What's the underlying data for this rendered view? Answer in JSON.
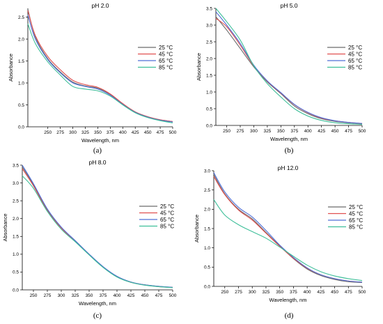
{
  "chart_data": [
    {
      "type": "line",
      "panel_label": "(a)",
      "title": "pH 2.0",
      "xlabel": "Wavelength, nm",
      "ylabel": "Absorbance",
      "xlim": [
        210,
        500
      ],
      "ylim": [
        0,
        2.7
      ],
      "xticks": [
        250,
        275,
        300,
        325,
        350,
        375,
        400,
        425,
        450,
        475,
        500
      ],
      "yticks": [
        0.0,
        0.5,
        1.0,
        1.5,
        2.0,
        2.5
      ],
      "ytick_labels": [
        "0.0",
        "0.5",
        "1.0",
        "1.5",
        "2.0",
        "2.5"
      ],
      "x": [
        210,
        225,
        250,
        275,
        300,
        325,
        350,
        375,
        400,
        425,
        450,
        475,
        500
      ],
      "series": [
        {
          "name": "25 °C",
          "color": "#6b6b6b",
          "values": [
            2.68,
            2.05,
            1.55,
            1.25,
            1.02,
            0.93,
            0.88,
            0.74,
            0.52,
            0.34,
            0.23,
            0.16,
            0.12
          ]
        },
        {
          "name": "45 °C",
          "color": "#e05050",
          "values": [
            2.65,
            2.08,
            1.6,
            1.3,
            1.06,
            0.96,
            0.9,
            0.75,
            0.53,
            0.34,
            0.23,
            0.16,
            0.12
          ]
        },
        {
          "name": "65 °C",
          "color": "#4f6fd8",
          "values": [
            2.55,
            2.0,
            1.53,
            1.23,
            1.0,
            0.92,
            0.86,
            0.72,
            0.51,
            0.33,
            0.22,
            0.15,
            0.11
          ]
        },
        {
          "name": "85 °C",
          "color": "#3fbf9a",
          "values": [
            2.35,
            1.9,
            1.48,
            1.18,
            0.92,
            0.86,
            0.82,
            0.7,
            0.5,
            0.32,
            0.21,
            0.14,
            0.09
          ]
        }
      ],
      "legend": "right"
    },
    {
      "type": "line",
      "panel_label": "(b)",
      "title": "pH 5.0",
      "xlabel": "Wavelength, nm",
      "ylabel": "Absorbance",
      "xlim": [
        230,
        500
      ],
      "ylim": [
        0,
        3.5
      ],
      "xticks": [
        250,
        275,
        300,
        325,
        350,
        375,
        400,
        425,
        450,
        475,
        500
      ],
      "yticks": [
        0.0,
        0.5,
        1.0,
        1.5,
        2.0,
        2.5,
        3.0,
        3.5
      ],
      "ytick_labels": [
        "0.0",
        "0.5",
        "1.0",
        "1.5",
        "2.0",
        "2.5",
        "3.0",
        "3.5"
      ],
      "x": [
        230,
        250,
        275,
        300,
        325,
        350,
        375,
        400,
        425,
        450,
        475,
        500
      ],
      "series": [
        {
          "name": "25 °C",
          "color": "#6b6b6b",
          "values": [
            3.25,
            2.85,
            2.3,
            1.75,
            1.3,
            0.95,
            0.58,
            0.35,
            0.2,
            0.12,
            0.08,
            0.05
          ]
        },
        {
          "name": "45 °C",
          "color": "#e05050",
          "values": [
            3.2,
            2.95,
            2.4,
            1.78,
            1.32,
            0.97,
            0.62,
            0.38,
            0.22,
            0.14,
            0.09,
            0.06
          ]
        },
        {
          "name": "65 °C",
          "color": "#4f6fd8",
          "values": [
            3.4,
            3.0,
            2.45,
            1.8,
            1.33,
            0.98,
            0.63,
            0.39,
            0.23,
            0.14,
            0.09,
            0.06
          ]
        },
        {
          "name": "85 °C",
          "color": "#3fbf9a",
          "values": [
            3.5,
            3.1,
            2.55,
            1.78,
            1.25,
            0.85,
            0.5,
            0.28,
            0.15,
            0.08,
            0.05,
            0.03
          ]
        }
      ],
      "legend": "right"
    },
    {
      "type": "line",
      "panel_label": "(c)",
      "title": "pH 8.0",
      "xlabel": "Wavelength, nm",
      "ylabel": "Absorbance",
      "xlim": [
        230,
        500
      ],
      "ylim": [
        0,
        3.5
      ],
      "xticks": [
        250,
        275,
        300,
        325,
        350,
        375,
        400,
        425,
        450,
        475,
        500
      ],
      "yticks": [
        0.0,
        0.5,
        1.0,
        1.5,
        2.0,
        2.5,
        3.0,
        3.5
      ],
      "ytick_labels": [
        "0.0",
        "0.5",
        "1.0",
        "1.5",
        "2.0",
        "2.5",
        "3.0",
        "3.5"
      ],
      "x": [
        230,
        250,
        275,
        300,
        325,
        350,
        375,
        400,
        425,
        450,
        475,
        500
      ],
      "series": [
        {
          "name": "25 °C",
          "color": "#6b6b6b",
          "values": [
            3.45,
            2.95,
            2.25,
            1.75,
            1.38,
            1.0,
            0.65,
            0.38,
            0.22,
            0.14,
            0.1,
            0.07
          ]
        },
        {
          "name": "45 °C",
          "color": "#e05050",
          "values": [
            3.4,
            2.92,
            2.22,
            1.73,
            1.36,
            0.99,
            0.64,
            0.37,
            0.21,
            0.14,
            0.09,
            0.07
          ]
        },
        {
          "name": "65 °C",
          "color": "#4f6fd8",
          "values": [
            3.5,
            2.98,
            2.27,
            1.76,
            1.38,
            1.0,
            0.65,
            0.38,
            0.22,
            0.14,
            0.1,
            0.07
          ]
        },
        {
          "name": "85 °C",
          "color": "#3fbf9a",
          "values": [
            3.2,
            2.85,
            2.2,
            1.7,
            1.35,
            0.98,
            0.63,
            0.36,
            0.21,
            0.13,
            0.09,
            0.06
          ]
        }
      ],
      "legend": "right"
    },
    {
      "type": "line",
      "panel_label": "(d)",
      "title": "pH 12.0",
      "xlabel": "Wavelength, nm",
      "ylabel": "Absorbance",
      "xlim": [
        230,
        500
      ],
      "ylim": [
        0,
        3.0
      ],
      "xticks": [
        250,
        275,
        300,
        325,
        350,
        375,
        400,
        425,
        450,
        475,
        500
      ],
      "yticks": [
        0.0,
        0.5,
        1.0,
        1.5,
        2.0,
        2.5,
        3.0
      ],
      "ytick_labels": [
        "0.0",
        "0.5",
        "1.0",
        "1.5",
        "2.0",
        "2.5",
        "3.0"
      ],
      "x": [
        230,
        250,
        275,
        300,
        325,
        350,
        375,
        400,
        425,
        450,
        475,
        500
      ],
      "series": [
        {
          "name": "25 °C",
          "color": "#6b6b6b",
          "values": [
            2.9,
            2.4,
            2.0,
            1.75,
            1.4,
            1.05,
            0.72,
            0.45,
            0.28,
            0.18,
            0.12,
            0.1
          ]
        },
        {
          "name": "45 °C",
          "color": "#e05050",
          "values": [
            2.85,
            2.38,
            1.98,
            1.72,
            1.38,
            1.04,
            0.73,
            0.47,
            0.3,
            0.2,
            0.14,
            0.11
          ]
        },
        {
          "name": "65 °C",
          "color": "#4f6fd8",
          "values": [
            2.95,
            2.45,
            2.05,
            1.8,
            1.45,
            1.07,
            0.75,
            0.48,
            0.3,
            0.2,
            0.14,
            0.11
          ]
        },
        {
          "name": "85 °C",
          "color": "#3fbf9a",
          "values": [
            2.25,
            1.85,
            1.6,
            1.42,
            1.25,
            1.02,
            0.78,
            0.55,
            0.38,
            0.27,
            0.2,
            0.15
          ]
        }
      ],
      "legend": "right"
    }
  ]
}
